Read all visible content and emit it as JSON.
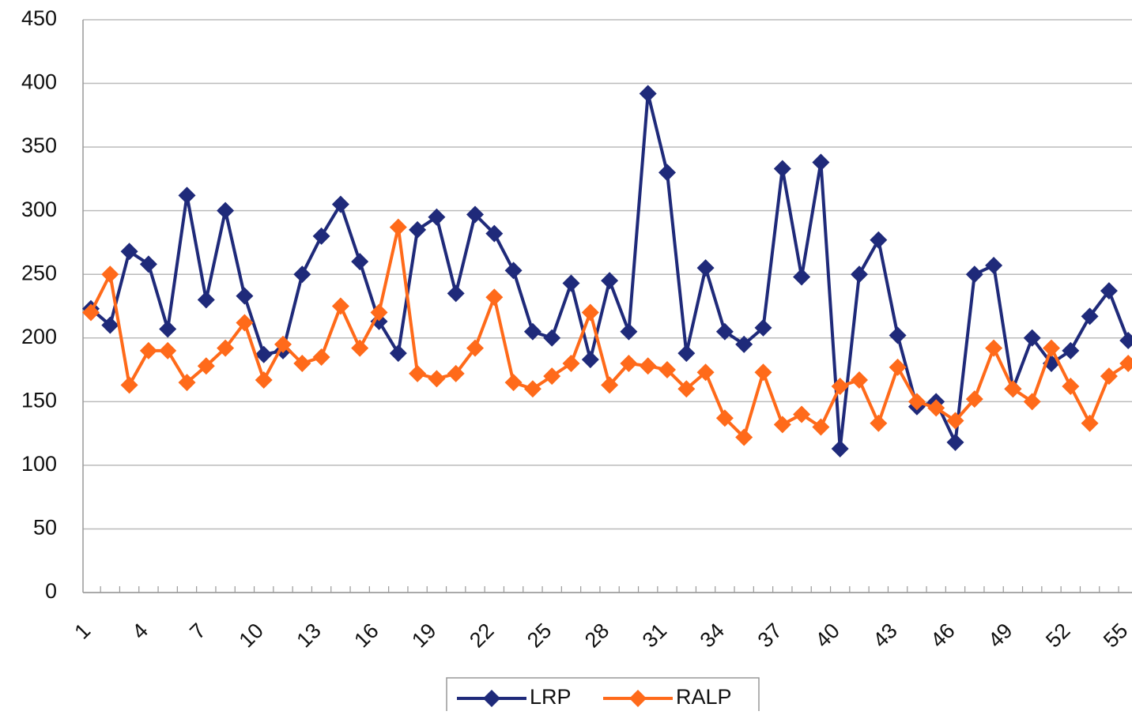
{
  "chart_data": {
    "type": "line",
    "categories": [
      1,
      null,
      null,
      4,
      null,
      null,
      7,
      null,
      null,
      10,
      null,
      null,
      13,
      null,
      null,
      16,
      null,
      null,
      19,
      null,
      null,
      22,
      null,
      null,
      25,
      null,
      null,
      28,
      null,
      null,
      31,
      null,
      null,
      34,
      null,
      null,
      37,
      null,
      null,
      40,
      null,
      null,
      43,
      null,
      null,
      46,
      null,
      null,
      49,
      null,
      null,
      52,
      null,
      null,
      55
    ],
    "series": [
      {
        "name": "LRP",
        "color": "#1f2a7a",
        "values": [
          223,
          210,
          268,
          258,
          207,
          312,
          230,
          300,
          233,
          187,
          190,
          250,
          280,
          305,
          260,
          213,
          188,
          285,
          295,
          235,
          297,
          282,
          253,
          205,
          200,
          243,
          183,
          245,
          205,
          392,
          330,
          188,
          255,
          205,
          195,
          208,
          333,
          248,
          338,
          113,
          250,
          277,
          202,
          146,
          150,
          118,
          250,
          257,
          160,
          200,
          180,
          190,
          217,
          237,
          198
        ]
      },
      {
        "name": "RALP",
        "color": "#ff6a1a",
        "values": [
          220,
          250,
          163,
          190,
          190,
          165,
          178,
          192,
          212,
          167,
          195,
          180,
          185,
          225,
          192,
          220,
          287,
          172,
          168,
          172,
          192,
          232,
          165,
          160,
          170,
          180,
          220,
          163,
          180,
          178,
          175,
          160,
          173,
          137,
          122,
          173,
          132,
          140,
          130,
          162,
          167,
          133,
          177,
          150,
          145,
          135,
          152,
          192,
          160,
          150,
          192,
          162,
          133,
          170,
          180
        ]
      }
    ],
    "ylim": [
      0,
      450
    ],
    "yticks": [
      0,
      50,
      100,
      150,
      200,
      250,
      300,
      350,
      400,
      450
    ],
    "grid": true,
    "legend": "bottom"
  }
}
